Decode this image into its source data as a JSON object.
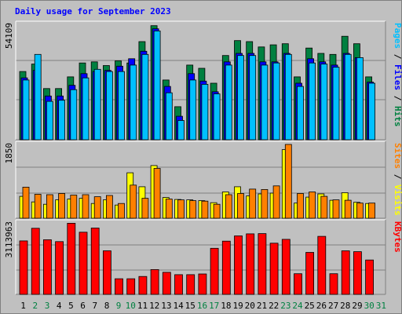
{
  "chart_data": [
    {
      "type": "bar",
      "title": "Daily usage for September 2023",
      "categories": [
        "1",
        "2",
        "3",
        "4",
        "5",
        "6",
        "7",
        "8",
        "9",
        "10",
        "11",
        "12",
        "13",
        "14",
        "15",
        "16",
        "17",
        "18",
        "19",
        "20",
        "21",
        "22",
        "23",
        "24",
        "25",
        "26",
        "27",
        "28",
        "29",
        "30",
        "31"
      ],
      "series": [
        {
          "name": "Hits",
          "values": [
            32000,
            35500,
            24000,
            24000,
            29500,
            36000,
            36500,
            34800,
            37000,
            36000,
            46000,
            53500,
            28000,
            15500,
            35000,
            33500,
            26500,
            39500,
            46500,
            46000,
            43500,
            44500,
            45000,
            29500,
            43000,
            40500,
            40000,
            48500,
            45000,
            29500,
            0
          ]
        },
        {
          "name": "Files",
          "values": [
            29000,
            32500,
            20500,
            20500,
            25500,
            31000,
            32000,
            32500,
            34500,
            38000,
            41500,
            52000,
            25000,
            11000,
            31000,
            27500,
            22500,
            36500,
            40500,
            40500,
            36500,
            36500,
            40500,
            26500,
            38000,
            36500,
            35000,
            40500,
            38500,
            27000,
            0
          ]
        },
        {
          "name": "Pages",
          "values": [
            28000,
            40000,
            18000,
            18500,
            23500,
            29000,
            33000,
            32000,
            32000,
            35000,
            40000,
            51000,
            22000,
            9000,
            28000,
            26000,
            21500,
            35000,
            39500,
            39500,
            35000,
            36000,
            40000,
            25000,
            36000,
            35500,
            34000,
            40000,
            38500,
            26500,
            0
          ]
        }
      ],
      "ylabel": "Pages / Files / Hits",
      "ymax_label": "54109",
      "ylim": [
        0,
        54109
      ]
    },
    {
      "type": "bar",
      "categories": [
        "1",
        "2",
        "3",
        "4",
        "5",
        "6",
        "7",
        "8",
        "9",
        "10",
        "11",
        "12",
        "13",
        "14",
        "15",
        "16",
        "17",
        "18",
        "19",
        "20",
        "21",
        "22",
        "23",
        "24",
        "25",
        "26",
        "27",
        "28",
        "29",
        "30",
        "31"
      ],
      "series": [
        {
          "name": "Visits",
          "values": [
            550,
            410,
            350,
            460,
            480,
            500,
            370,
            460,
            330,
            1140,
            790,
            1320,
            520,
            470,
            460,
            440,
            390,
            660,
            790,
            560,
            610,
            630,
            1720,
            380,
            530,
            610,
            450,
            640,
            400,
            370,
            0
          ]
        },
        {
          "name": "Sites",
          "values": [
            780,
            600,
            590,
            620,
            580,
            590,
            540,
            570,
            370,
            830,
            500,
            1250,
            480,
            460,
            440,
            430,
            350,
            590,
            620,
            730,
            720,
            810,
            1850,
            620,
            660,
            550,
            460,
            450,
            380,
            380,
            0
          ]
        }
      ],
      "ylabel": "Sites / Visits",
      "ymax_label": "1850",
      "ylim": [
        0,
        1850
      ]
    },
    {
      "type": "bar",
      "categories": [
        "1",
        "2",
        "3",
        "4",
        "5",
        "6",
        "7",
        "8",
        "9",
        "10",
        "11",
        "12",
        "13",
        "14",
        "15",
        "16",
        "17",
        "18",
        "19",
        "20",
        "21",
        "22",
        "23",
        "24",
        "25",
        "26",
        "27",
        "28",
        "29",
        "30",
        "31"
      ],
      "series": [
        {
          "name": "KBytes",
          "values": [
            2330000,
            2880000,
            2380000,
            2300000,
            3100000,
            2710000,
            2890000,
            1900000,
            680000,
            680000,
            780000,
            1080000,
            960000,
            860000,
            860000,
            890000,
            2010000,
            2320000,
            2550000,
            2640000,
            2650000,
            2230000,
            2400000,
            900000,
            1830000,
            2530000,
            900000,
            1900000,
            1860000,
            1500000,
            0
          ]
        }
      ],
      "ylabel": "KBytes",
      "ymax_label": "3113963",
      "ylim": [
        0,
        3113963
      ]
    }
  ],
  "colors": {
    "hits": "#008040",
    "files": "#0000ff",
    "pages": "#00c0ff",
    "visits": "#ffff00",
    "sites": "#ff8000",
    "kbytes": "#ff0000",
    "title": "#0000ff",
    "weekend": "#008040",
    "weekday": "#000000",
    "panel": "#c0c0c0"
  },
  "weekend_days": [
    2,
    3,
    9,
    10,
    16,
    17,
    23,
    24,
    30,
    31
  ]
}
